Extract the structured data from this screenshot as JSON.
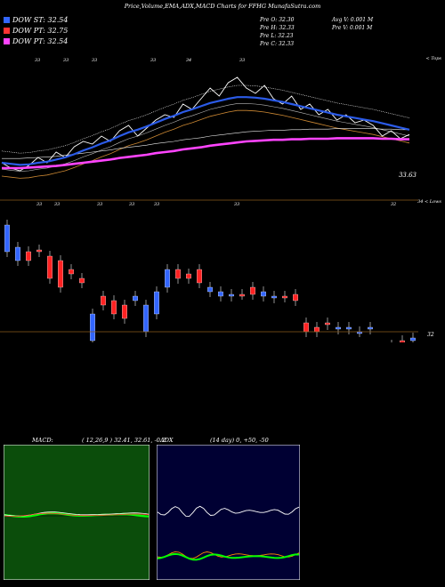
{
  "header": {
    "title": "Price,Volume,EMA,ADX,MACD Charts for FFHG MunafaSutra.com"
  },
  "legend": [
    {
      "label": "DOW ST: 32.54",
      "color": "#3366ff"
    },
    {
      "label": "DOW PT: 32.75",
      "color": "#ff3333"
    },
    {
      "label": "DOW PT: 32.54",
      "color": "#ff44ff"
    }
  ],
  "ohlc": {
    "prev_open": "Pre   O: 32.30",
    "prev_high": "Pre   H: 32.33",
    "prev_low": "Pre   L: 32.23",
    "prev_close": "Pre   C: 32.33",
    "avg_volume": "Avg V: 0.001 M",
    "prev_volume": "Pre   V: 0.001 M"
  },
  "upper_panel": {
    "corner_label": "< Tops",
    "last_price_label": "33.63"
  },
  "lower_panel": {
    "corner_label": "34 < Lows",
    "right_axis_label": "32"
  },
  "macd": {
    "title": "MACD:",
    "params": "( 12,26,9 ) 32.41,  32.61,  -0.2"
  },
  "adx": {
    "title": "ADX",
    "params": "(14  day) 0,  +50,  -50"
  },
  "colors": {
    "up": "#3366ff",
    "down": "#ff2222",
    "ema_fast": "#2b5be8",
    "ema_pink": "#ff44ff",
    "macd_bg": "#0b4d0b",
    "adx_bg": "#000033"
  },
  "chart_data": [
    {
      "type": "line",
      "title": "Price with EMAs (tops)",
      "top_labels": [
        "33",
        "33",
        "33",
        "33",
        "34",
        "33"
      ],
      "price": [
        33.1,
        33.0,
        32.95,
        33.05,
        33.2,
        33.1,
        33.3,
        33.2,
        33.4,
        33.5,
        33.45,
        33.6,
        33.5,
        33.7,
        33.8,
        33.6,
        33.75,
        33.9,
        34.0,
        33.95,
        34.2,
        34.1,
        34.3,
        34.5,
        34.35,
        34.6,
        34.7,
        34.5,
        34.4,
        34.55,
        34.3,
        34.2,
        34.35,
        34.1,
        34.2,
        34.0,
        34.1,
        33.9,
        34.0,
        33.85,
        33.9,
        33.8,
        33.6,
        33.7,
        33.55,
        33.63
      ],
      "ema_fast": [
        33.1,
        33.08,
        33.06,
        33.07,
        33.1,
        33.12,
        33.16,
        33.2,
        33.26,
        33.33,
        33.39,
        33.46,
        33.52,
        33.6,
        33.67,
        33.72,
        33.78,
        33.85,
        33.92,
        33.98,
        34.05,
        34.1,
        34.16,
        34.22,
        34.26,
        34.3,
        34.33,
        34.33,
        34.32,
        34.3,
        34.27,
        34.24,
        34.2,
        34.16,
        34.12,
        34.08,
        34.04,
        34.0,
        33.97,
        33.94,
        33.91,
        33.88,
        33.84,
        33.8,
        33.76,
        33.72
      ],
      "ema_pink": [
        33.0,
        33.0,
        33.0,
        33.01,
        33.02,
        33.03,
        33.04,
        33.06,
        33.08,
        33.1,
        33.12,
        33.14,
        33.16,
        33.19,
        33.21,
        33.23,
        33.25,
        33.28,
        33.3,
        33.32,
        33.35,
        33.37,
        33.39,
        33.42,
        33.44,
        33.46,
        33.48,
        33.5,
        33.51,
        33.52,
        33.53,
        33.53,
        33.54,
        33.54,
        33.55,
        33.55,
        33.55,
        33.56,
        33.56,
        33.56,
        33.56,
        33.56,
        33.55,
        33.55,
        33.54,
        33.54
      ]
    },
    {
      "type": "bar",
      "title": "Candles (lows)",
      "bottom_labels": [
        "33",
        "33",
        "33",
        "33",
        "33",
        "33",
        "32"
      ],
      "candles": [
        {
          "o": 33.6,
          "c": 33.3,
          "up": true
        },
        {
          "o": 33.2,
          "c": 33.35,
          "up": true
        },
        {
          "o": 33.3,
          "c": 33.2,
          "up": false
        },
        {
          "o": 33.3,
          "c": 33.32,
          "up": false
        },
        {
          "o": 33.25,
          "c": 33.0,
          "up": false
        },
        {
          "o": 33.2,
          "c": 32.9,
          "up": false
        },
        {
          "o": 33.1,
          "c": 33.05,
          "up": false
        },
        {
          "o": 33.0,
          "c": 32.95,
          "up": false
        },
        {
          "o": 32.6,
          "c": 32.3,
          "up": true
        },
        {
          "o": 32.8,
          "c": 32.7,
          "up": false
        },
        {
          "o": 32.75,
          "c": 32.6,
          "up": false
        },
        {
          "o": 32.7,
          "c": 32.55,
          "up": false
        },
        {
          "o": 32.75,
          "c": 32.8,
          "up": true
        },
        {
          "o": 32.7,
          "c": 32.4,
          "up": true
        },
        {
          "o": 32.85,
          "c": 32.6,
          "up": true
        },
        {
          "o": 33.1,
          "c": 32.9,
          "up": true
        },
        {
          "o": 33.0,
          "c": 33.1,
          "up": false
        },
        {
          "o": 33.05,
          "c": 33.0,
          "up": false
        },
        {
          "o": 33.1,
          "c": 32.95,
          "up": false
        },
        {
          "o": 32.9,
          "c": 32.85,
          "up": true
        },
        {
          "o": 32.85,
          "c": 32.8,
          "up": true
        },
        {
          "o": 32.82,
          "c": 32.8,
          "up": true
        },
        {
          "o": 32.82,
          "c": 32.82,
          "up": false
        },
        {
          "o": 32.9,
          "c": 32.82,
          "up": false
        },
        {
          "o": 32.85,
          "c": 32.8,
          "up": true
        },
        {
          "o": 32.8,
          "c": 32.78,
          "up": true
        },
        {
          "o": 32.8,
          "c": 32.79,
          "up": false
        },
        {
          "o": 32.82,
          "c": 32.75,
          "up": false
        },
        {
          "o": 32.5,
          "c": 32.4,
          "up": false
        },
        {
          "o": 32.45,
          "c": 32.4,
          "up": false
        },
        {
          "o": 32.5,
          "c": 32.48,
          "up": false
        },
        {
          "o": 32.45,
          "c": 32.43,
          "up": true
        },
        {
          "o": 32.45,
          "c": 32.43,
          "up": true
        },
        {
          "o": 32.4,
          "c": 32.4,
          "up": true
        },
        {
          "o": 32.45,
          "c": 32.43,
          "up": true
        },
        {
          "o": 32.2,
          "c": 32.15,
          "up": true
        },
        {
          "o": 32.25,
          "c": 32.2,
          "up": false
        },
        {
          "o": 32.3,
          "c": 32.23,
          "up": false
        },
        {
          "o": 32.3,
          "c": 32.33,
          "up": true
        }
      ]
    }
  ]
}
